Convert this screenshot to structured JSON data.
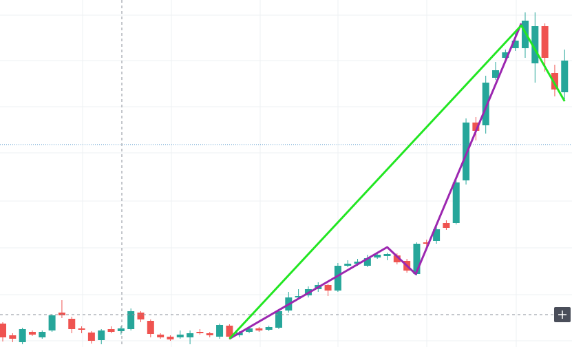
{
  "chart_data": {
    "type": "candlestick",
    "up_color": "#26a69a",
    "down_color": "#ef5350",
    "xlim": [
      -0.28,
      57.75
    ],
    "ylim": [
      0,
      504
    ],
    "yticks": [
      9,
      76,
      144,
      212,
      282,
      349,
      416,
      482
    ],
    "grid": true,
    "open": [
      34,
      17,
      7,
      22,
      14,
      24,
      50,
      41,
      27,
      21,
      10,
      26,
      23,
      26,
      50,
      38,
      18,
      15,
      14,
      14,
      22,
      20,
      15,
      31,
      17,
      22,
      27,
      25,
      28,
      53,
      72,
      75,
      84,
      90,
      82,
      118,
      121,
      118,
      130,
      132,
      133,
      125,
      106,
      152,
      154,
      180,
      180,
      242,
      326,
      322,
      391,
      420,
      434,
      434,
      412,
      466,
      398,
      370
    ],
    "high": [
      36,
      20,
      28,
      24,
      24,
      48,
      68,
      44,
      30,
      23,
      26,
      30,
      30,
      56,
      52,
      40,
      20,
      17,
      24,
      24,
      26,
      22,
      34,
      33,
      23,
      29,
      29,
      31,
      55,
      80,
      84,
      88,
      94,
      92,
      122,
      126,
      128,
      134,
      136,
      137,
      136,
      128,
      152,
      156,
      178,
      184,
      242,
      332,
      334,
      394,
      414,
      432,
      456,
      486,
      486,
      470,
      410,
      432
    ],
    "low": [
      8,
      7,
      4,
      16,
      12,
      22,
      42,
      20,
      20,
      5,
      4,
      20,
      18,
      24,
      36,
      14,
      12,
      9,
      12,
      4,
      18,
      14,
      12,
      11,
      14,
      20,
      22,
      23,
      26,
      50,
      70,
      72,
      80,
      74,
      80,
      116,
      118,
      116,
      128,
      126,
      120,
      108,
      104,
      146,
      150,
      170,
      178,
      236,
      300,
      310,
      388,
      416,
      430,
      420,
      384,
      400,
      364,
      360
    ],
    "close": [
      14,
      12,
      26,
      18,
      22,
      46,
      46,
      26,
      25,
      9,
      24,
      22,
      27,
      52,
      40,
      19,
      14,
      11,
      18,
      20,
      20,
      17,
      32,
      15,
      21,
      27,
      24,
      29,
      52,
      72,
      74,
      84,
      90,
      82,
      118,
      121,
      124,
      129,
      134,
      135,
      123,
      111,
      150,
      150,
      171,
      173,
      239,
      326,
      314,
      384,
      402,
      428,
      445,
      474,
      466,
      420,
      374,
      416
    ],
    "drawings": [
      {
        "color": "#9c27b0",
        "x": [
          23,
          39,
          41.9,
          52.6
        ],
        "values": [
          12,
          145,
          106,
          470
        ]
      },
      {
        "color": "#22e622",
        "x": [
          23,
          52.6,
          57
        ],
        "values": [
          12,
          467,
          357
        ]
      }
    ],
    "hlines": [
      {
        "value": 294,
        "color": "#4a90c8"
      },
      {
        "value": 47,
        "color": "#8a8f99"
      }
    ]
  }
}
